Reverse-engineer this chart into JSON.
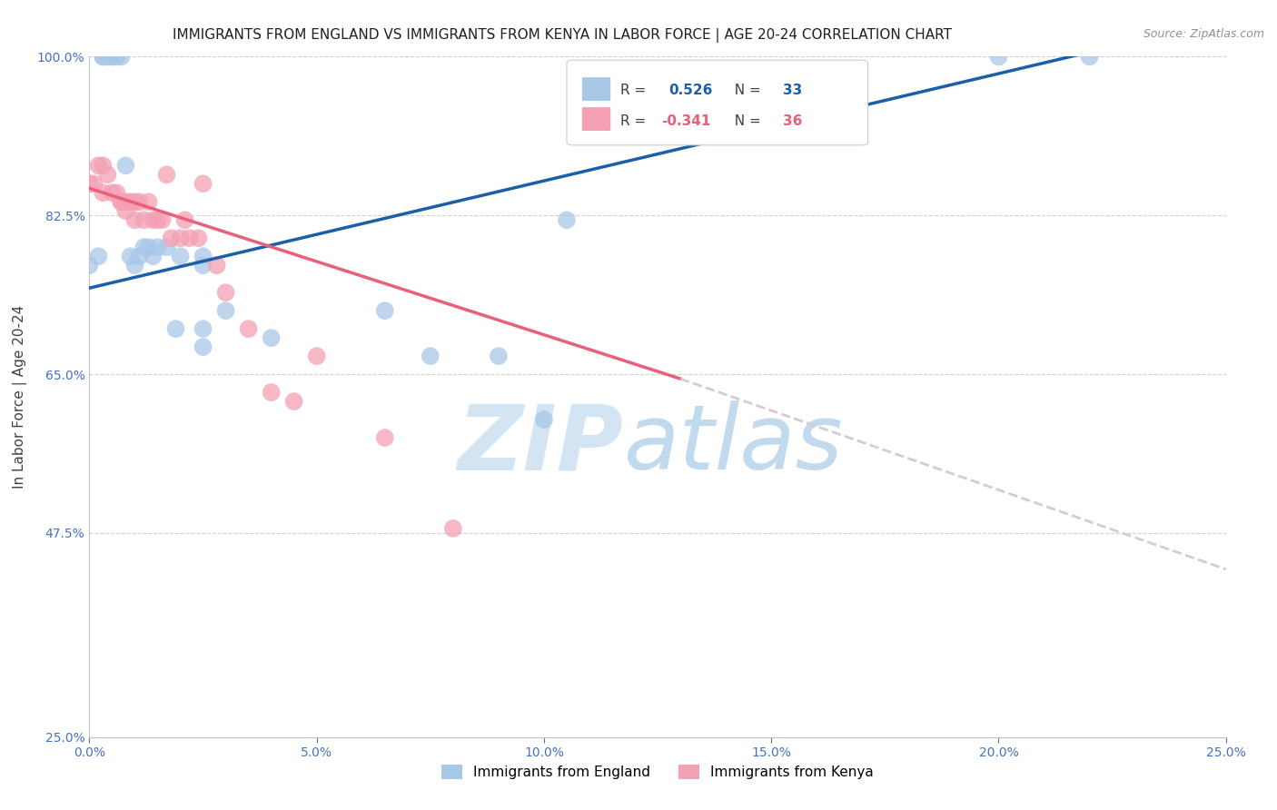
{
  "title": "IMMIGRANTS FROM ENGLAND VS IMMIGRANTS FROM KENYA IN LABOR FORCE | AGE 20-24 CORRELATION CHART",
  "source": "Source: ZipAtlas.com",
  "ylabel": "In Labor Force | Age 20-24",
  "x_tick_labels": [
    "0.0%",
    "5.0%",
    "10.0%",
    "15.0%",
    "20.0%",
    "25.0%"
  ],
  "x_tick_values": [
    0.0,
    0.05,
    0.1,
    0.15,
    0.2,
    0.25
  ],
  "y_tick_labels": [
    "25.0%",
    "47.5%",
    "65.0%",
    "82.5%",
    "100.0%"
  ],
  "y_tick_values": [
    0.25,
    0.475,
    0.65,
    0.825,
    1.0
  ],
  "xlim": [
    0.0,
    0.25
  ],
  "ylim": [
    0.25,
    1.0
  ],
  "england_R": 0.526,
  "england_N": 33,
  "kenya_R": -0.341,
  "kenya_N": 36,
  "england_color": "#a8c8e8",
  "kenya_color": "#f4a0b5",
  "england_line_color": "#1a5fa8",
  "kenya_line_color": "#e8607a",
  "dashed_line_color": "#d8c8d8",
  "watermark_zip": "ZIP",
  "watermark_atlas": "atlas",
  "england_points_x": [
    0.0,
    0.002,
    0.003,
    0.003,
    0.004,
    0.005,
    0.005,
    0.006,
    0.007,
    0.008,
    0.009,
    0.01,
    0.011,
    0.012,
    0.013,
    0.014,
    0.015,
    0.017,
    0.019,
    0.02,
    0.025,
    0.025,
    0.025,
    0.025,
    0.03,
    0.04,
    0.065,
    0.075,
    0.09,
    0.1,
    0.105,
    0.2,
    0.22
  ],
  "england_points_y": [
    0.77,
    0.78,
    1.0,
    1.0,
    1.0,
    1.0,
    1.0,
    1.0,
    1.0,
    0.88,
    0.78,
    0.77,
    0.78,
    0.79,
    0.79,
    0.78,
    0.79,
    0.79,
    0.7,
    0.78,
    0.78,
    0.77,
    0.7,
    0.68,
    0.72,
    0.69,
    0.72,
    0.67,
    0.67,
    0.6,
    0.82,
    1.0,
    1.0
  ],
  "kenya_points_x": [
    0.0,
    0.001,
    0.002,
    0.003,
    0.003,
    0.004,
    0.005,
    0.006,
    0.007,
    0.007,
    0.008,
    0.008,
    0.009,
    0.01,
    0.01,
    0.011,
    0.012,
    0.013,
    0.014,
    0.015,
    0.016,
    0.017,
    0.018,
    0.02,
    0.021,
    0.022,
    0.024,
    0.025,
    0.028,
    0.03,
    0.035,
    0.04,
    0.045,
    0.05,
    0.065,
    0.08
  ],
  "kenya_points_y": [
    0.86,
    0.86,
    0.88,
    0.88,
    0.85,
    0.87,
    0.85,
    0.85,
    0.84,
    0.84,
    0.84,
    0.83,
    0.84,
    0.84,
    0.82,
    0.84,
    0.82,
    0.84,
    0.82,
    0.82,
    0.82,
    0.87,
    0.8,
    0.8,
    0.82,
    0.8,
    0.8,
    0.86,
    0.77,
    0.74,
    0.7,
    0.63,
    0.62,
    0.67,
    0.58,
    0.48
  ],
  "title_fontsize": 11,
  "axis_label_fontsize": 11,
  "tick_fontsize": 10,
  "legend_fontsize": 11,
  "source_fontsize": 9
}
